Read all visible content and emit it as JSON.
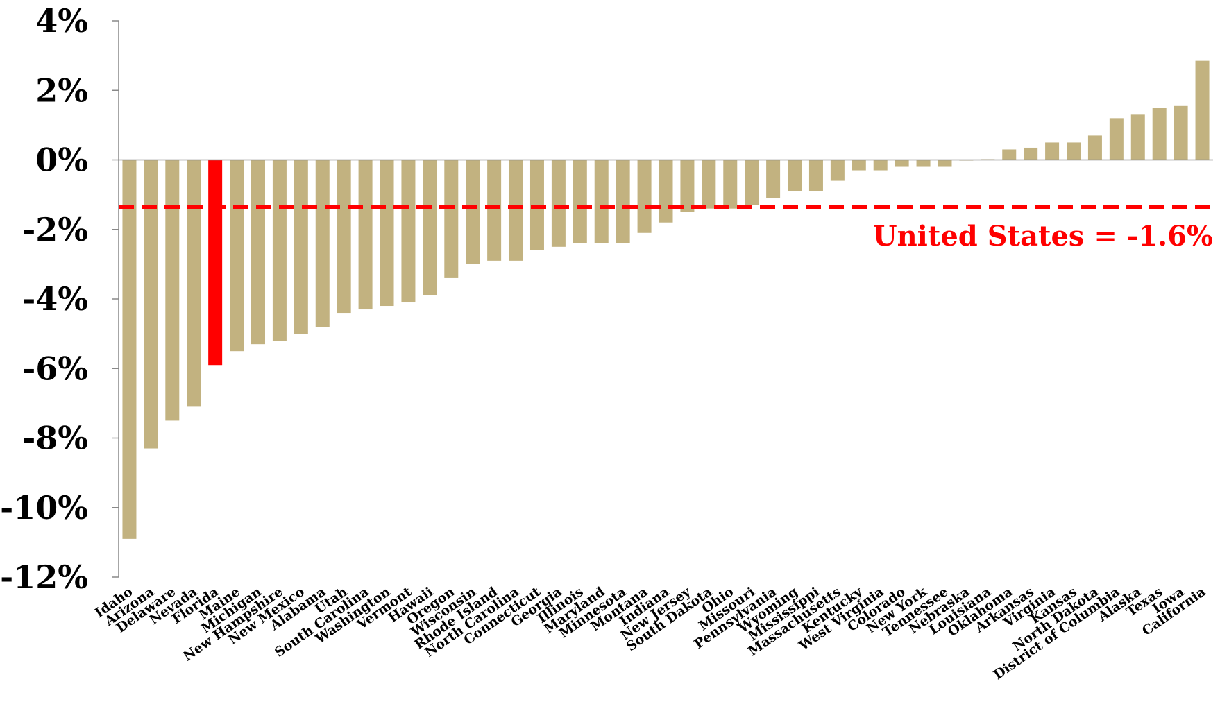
{
  "chart_data": {
    "type": "bar",
    "title": "",
    "xlabel": "",
    "ylabel": "",
    "ylim": [
      -12,
      4
    ],
    "yticks": [
      4,
      2,
      0,
      -2,
      -4,
      -6,
      -8,
      -10,
      -12
    ],
    "ytick_labels": [
      "4%",
      "2%",
      "0%",
      "-2%",
      "-4%",
      "-6%",
      "-8%",
      "-10%",
      "-12%"
    ],
    "grid": false,
    "bar_color": "#c2b280",
    "highlight_color": "#ff0000",
    "highlight_category": "Florida",
    "categories": [
      "Idaho",
      "Arizona",
      "Delaware",
      "Nevada",
      "Florida",
      "Maine",
      "Michigan",
      "New Hampshire",
      "New Mexico",
      "Alabama",
      "Utah",
      "South Carolina",
      "Washington",
      "Vermont",
      "Hawaii",
      "Oregon",
      "Wisconsin",
      "Rhode Island",
      "North Carolina",
      "Connecticut",
      "Georgia",
      "Illinois",
      "Maryland",
      "Minnesota",
      "Montana",
      "Indiana",
      "New Jersey",
      "South Dakota",
      "Ohio",
      "Missouri",
      "Pennsylvania",
      "Wyoming",
      "Mississippi",
      "Massachusetts",
      "Kentucky",
      "West Virginia",
      "Colorado",
      "New York",
      "Tennessee",
      "Nebraska",
      "Louisiana",
      "Oklahoma",
      "Arkansas",
      "Virginia",
      "Kansas",
      "North Dakota",
      "District of Columbia",
      "Alaska",
      "Texas",
      "Iowa",
      "California"
    ],
    "values": [
      -10.9,
      -8.3,
      -7.5,
      -7.1,
      -5.9,
      -5.5,
      -5.3,
      -5.2,
      -5.0,
      -4.8,
      -4.4,
      -4.3,
      -4.2,
      -4.1,
      -3.9,
      -3.4,
      -3.0,
      -2.9,
      -2.9,
      -2.6,
      -2.5,
      -2.4,
      -2.4,
      -2.4,
      -2.1,
      -1.8,
      -1.5,
      -1.4,
      -1.4,
      -1.3,
      -1.1,
      -0.9,
      -0.9,
      -0.6,
      -0.3,
      -0.3,
      -0.2,
      -0.2,
      -0.2,
      0.0,
      0.02,
      0.3,
      0.35,
      0.5,
      0.5,
      0.7,
      1.2,
      1.3,
      1.5,
      1.55,
      2.85
    ],
    "reference_line": {
      "label": "United States = -1.6%",
      "color": "#ff0000"
    }
  }
}
